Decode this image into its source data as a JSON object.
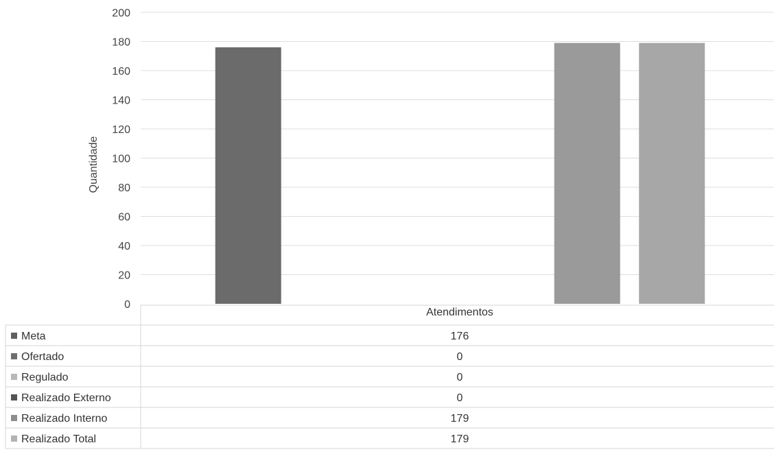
{
  "chart_data": {
    "type": "bar",
    "title": "",
    "xlabel": "",
    "ylabel": "Quantidade",
    "ylim": [
      0,
      200
    ],
    "yticks": [
      0,
      20,
      40,
      60,
      80,
      100,
      120,
      140,
      160,
      180,
      200
    ],
    "grid": true,
    "legend": "data-table",
    "categories": [
      "Atendimentos"
    ],
    "series": [
      {
        "name": "Meta",
        "values": [
          176
        ],
        "color": "#6b6b6b",
        "legend_color": "#5f5f5f"
      },
      {
        "name": "Ofertado",
        "values": [
          0
        ],
        "color": "#8a8a8a",
        "legend_color": "#6e6e6e"
      },
      {
        "name": "Regulado",
        "values": [
          0
        ],
        "color": "#bdbdbd",
        "legend_color": "#b9b9b9"
      },
      {
        "name": "Realizado Externo",
        "values": [
          0
        ],
        "color": "#555555",
        "legend_color": "#555555"
      },
      {
        "name": "Realizado Interno",
        "values": [
          179
        ],
        "color": "#9a9a9a",
        "legend_color": "#8d8d8d"
      },
      {
        "name": "Realizado Total",
        "values": [
          179
        ],
        "color": "#a7a7a7",
        "legend_color": "#b3b3b3"
      }
    ],
    "table": {
      "header": "Atendimentos",
      "values": [
        "176",
        "0",
        "0",
        "0",
        "179",
        "179"
      ]
    }
  }
}
